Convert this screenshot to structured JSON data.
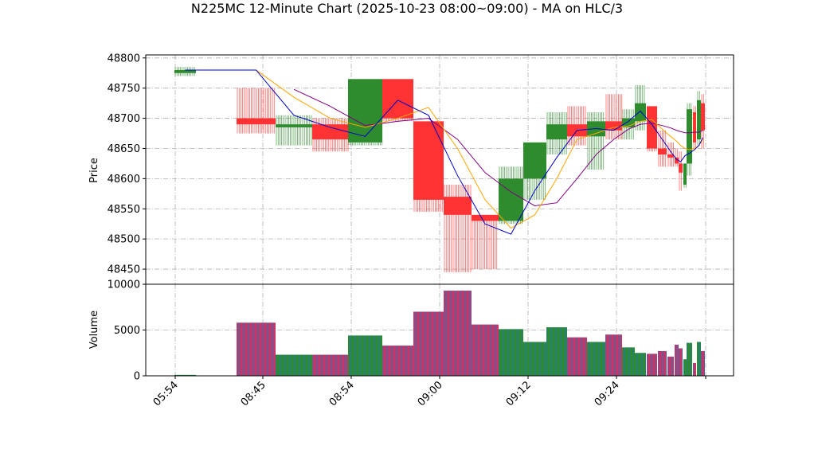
{
  "title": "N225MC 12-Minute Chart (2025-10-23 08:00~09:00) - MA on HLC/3",
  "chart_data": [
    {
      "type": "candlestick",
      "panel": "price",
      "ylabel": "Price",
      "ylim": [
        48425,
        48805
      ],
      "yticks": [
        48450,
        48500,
        48550,
        48600,
        48650,
        48700,
        48750,
        48800
      ],
      "grid": true,
      "colors": {
        "up": "#2e8b2e",
        "down": "#ff3333",
        "ma_fast": "#0000cc",
        "ma_mid": "#ffa500",
        "ma_slow": "#800080"
      },
      "candles": [
        {
          "open": 48775,
          "high": 48785,
          "low": 48770,
          "close": 48780
        },
        {
          "open": 48700,
          "high": 48750,
          "low": 48675,
          "close": 48690
        },
        {
          "open": 48685,
          "high": 48705,
          "low": 48655,
          "close": 48690
        },
        {
          "open": 48690,
          "high": 48700,
          "low": 48645,
          "close": 48665
        },
        {
          "open": 48660,
          "high": 48765,
          "low": 48655,
          "close": 48765
        },
        {
          "open": 48765,
          "high": 48765,
          "low": 48695,
          "close": 48700
        },
        {
          "open": 48695,
          "high": 48695,
          "low": 48545,
          "close": 48565
        },
        {
          "open": 48570,
          "high": 48590,
          "low": 48445,
          "close": 48540
        },
        {
          "open": 48540,
          "high": 48540,
          "low": 48450,
          "close": 48530
        },
        {
          "open": 48530,
          "high": 48620,
          "low": 48525,
          "close": 48600
        },
        {
          "open": 48600,
          "high": 48660,
          "low": 48565,
          "close": 48660
        },
        {
          "open": 48665,
          "high": 48710,
          "low": 48640,
          "close": 48690
        },
        {
          "open": 48690,
          "high": 48720,
          "low": 48655,
          "close": 48670
        },
        {
          "open": 48670,
          "high": 48710,
          "low": 48615,
          "close": 48695
        },
        {
          "open": 48695,
          "high": 48740,
          "low": 48665,
          "close": 48680
        },
        {
          "open": 48685,
          "high": 48715,
          "low": 48665,
          "close": 48700
        },
        {
          "open": 48695,
          "high": 48755,
          "low": 48680,
          "close": 48725
        },
        {
          "open": 48720,
          "high": 48720,
          "low": 48645,
          "close": 48650
        },
        {
          "open": 48650,
          "high": 48680,
          "low": 48620,
          "close": 48640
        },
        {
          "open": 48640,
          "high": 48660,
          "low": 48620,
          "close": 48635
        },
        {
          "open": 48635,
          "high": 48650,
          "low": 48620,
          "close": 48625
        },
        {
          "open": 48625,
          "high": 48645,
          "low": 48580,
          "close": 48610
        },
        {
          "open": 48590,
          "high": 48625,
          "low": 48585,
          "close": 48625
        },
        {
          "open": 48625,
          "high": 48725,
          "low": 48605,
          "close": 48715
        },
        {
          "open": 48710,
          "high": 48720,
          "low": 48650,
          "close": 48660
        },
        {
          "open": 48665,
          "high": 48745,
          "low": 48655,
          "close": 48730
        },
        {
          "open": 48725,
          "high": 48740,
          "low": 48650,
          "close": 48680
        }
      ],
      "ma_fast": [
        48780,
        48780,
        48705,
        48685,
        48670,
        48730,
        48705,
        48605,
        48525,
        48508,
        48580,
        48635,
        48680,
        48683,
        48680,
        48695,
        48712,
        48690,
        48665,
        48645,
        48632,
        48628,
        48638,
        48642,
        48648,
        48655,
        48668
      ],
      "ma_mid": [
        null,
        48780,
        48735,
        48700,
        48685,
        48700,
        48718,
        48650,
        48565,
        48518,
        48540,
        48600,
        48665,
        48675,
        48685,
        48687,
        48695,
        48698,
        48682,
        48670,
        48662,
        48655,
        48650,
        48648,
        48650,
        48655,
        48665
      ],
      "ma_slow": [
        null,
        null,
        48748,
        48720,
        48688,
        48695,
        48700,
        48665,
        48610,
        48578,
        48555,
        48560,
        48600,
        48640,
        48665,
        48682,
        48690,
        48692,
        48688,
        48684,
        48680,
        48678,
        48676,
        48676,
        48677,
        48677,
        48680
      ]
    },
    {
      "type": "bar",
      "panel": "volume",
      "ylabel": "Volume",
      "ylim": [
        0,
        10000
      ],
      "yticks": [
        0,
        5000,
        10000
      ],
      "grid": true,
      "values": [
        100,
        5800,
        2300,
        2300,
        4400,
        3300,
        7000,
        9300,
        5600,
        5100,
        3700,
        5300,
        4200,
        3700,
        4500,
        3100,
        2500,
        2400,
        2700,
        2100,
        3400,
        3000,
        1800,
        3600,
        1400,
        3700,
        2700
      ],
      "colors": {
        "edge": "#1f77b4",
        "up_fill": "#2e8b2e",
        "down_fill": "#cc3366"
      }
    }
  ],
  "x_axis": {
    "tick_labels": [
      "05:54",
      "08:45",
      "08:54",
      "09:00",
      "09:12",
      "09:24"
    ]
  }
}
